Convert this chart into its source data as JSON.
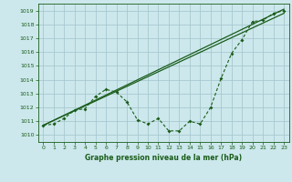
{
  "xlabel": "Graphe pression niveau de la mer (hPa)",
  "bg_color": "#cce8ec",
  "grid_color": "#a8c8d0",
  "line_color": "#1a5c1a",
  "xlim": [
    -0.5,
    23.5
  ],
  "ylim": [
    1009.5,
    1019.5
  ],
  "yticks": [
    1010,
    1011,
    1012,
    1013,
    1014,
    1015,
    1016,
    1017,
    1018,
    1019
  ],
  "xticks": [
    0,
    1,
    2,
    3,
    4,
    5,
    6,
    7,
    8,
    9,
    10,
    11,
    12,
    13,
    14,
    15,
    16,
    17,
    18,
    19,
    20,
    21,
    22,
    23
  ],
  "line1_x": [
    0,
    1,
    2,
    3,
    4,
    5,
    6,
    7,
    8,
    9,
    10,
    11,
    12,
    13,
    14,
    15,
    16,
    17,
    18,
    19,
    20,
    21,
    22,
    23
  ],
  "line1_y": [
    1010.7,
    1010.8,
    1011.2,
    1011.8,
    1011.9,
    1012.8,
    1013.3,
    1013.1,
    1012.4,
    1011.1,
    1010.8,
    1011.2,
    1010.3,
    1010.3,
    1011.0,
    1010.8,
    1012.0,
    1014.1,
    1015.9,
    1016.9,
    1018.2,
    1018.3,
    1018.8,
    1019.0
  ],
  "line2_x": [
    0,
    23
  ],
  "line2_y": [
    1010.7,
    1019.1
  ],
  "line3_x": [
    0,
    23
  ],
  "line3_y": [
    1010.7,
    1018.8
  ]
}
